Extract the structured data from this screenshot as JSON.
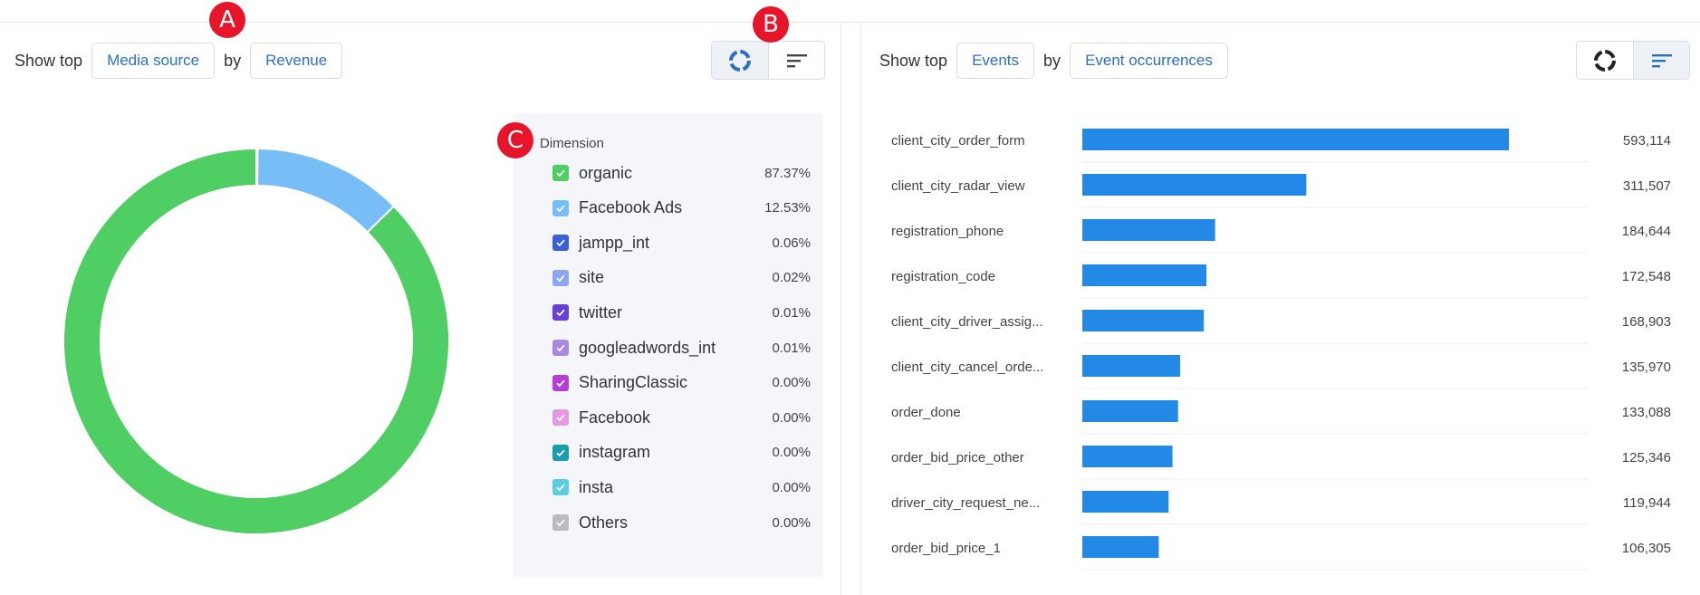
{
  "left_panel": {
    "show_top_label": "Show top",
    "dimension_pill": "Media source",
    "by_label": "by",
    "metric_pill": "Revenue",
    "legend_title": "Dimension",
    "legend": [
      {
        "name": "organic",
        "pct": "87.37%",
        "color": "#4fce64"
      },
      {
        "name": "Facebook Ads",
        "pct": "12.53%",
        "color": "#78bef6"
      },
      {
        "name": "jampp_int",
        "pct": "0.06%",
        "color": "#3b5fd9"
      },
      {
        "name": "site",
        "pct": "0.02%",
        "color": "#8aa6f0"
      },
      {
        "name": "twitter",
        "pct": "0.01%",
        "color": "#6a3fd6"
      },
      {
        "name": "googleadwords_int",
        "pct": "0.01%",
        "color": "#a88ae6"
      },
      {
        "name": "SharingClassic",
        "pct": "0.00%",
        "color": "#b53fd6"
      },
      {
        "name": "Facebook",
        "pct": "0.00%",
        "color": "#e59ae6"
      },
      {
        "name": "instagram",
        "pct": "0.00%",
        "color": "#1a9eac"
      },
      {
        "name": "insta",
        "pct": "0.00%",
        "color": "#5ccde3"
      },
      {
        "name": "Others",
        "pct": "0.00%",
        "color": "#b9bcc0"
      }
    ]
  },
  "right_panel": {
    "show_top_label": "Show top",
    "dimension_pill": "Events",
    "by_label": "by",
    "metric_pill": "Event occurrences"
  },
  "icons": {
    "donut_toggle": "donut-chart-icon",
    "bar_toggle": "bar-sort-icon"
  },
  "markers": {
    "a": "A",
    "b": "B",
    "c": "C"
  },
  "chart_data": [
    {
      "type": "pie",
      "variant": "donut",
      "categories": [
        "organic",
        "Facebook Ads",
        "jampp_int",
        "site",
        "twitter",
        "googleadwords_int",
        "SharingClassic",
        "Facebook",
        "instagram",
        "insta",
        "Others"
      ],
      "values": [
        87.37,
        12.53,
        0.06,
        0.02,
        0.01,
        0.01,
        0.0,
        0.0,
        0.0,
        0.0,
        0.0
      ],
      "colors": [
        "#4fce64",
        "#78bef6",
        "#3b5fd9",
        "#8aa6f0",
        "#6a3fd6",
        "#a88ae6",
        "#b53fd6",
        "#e59ae6",
        "#1a9eac",
        "#5ccde3",
        "#b9bcc0"
      ],
      "legend_position": "right"
    },
    {
      "type": "bar",
      "orientation": "horizontal",
      "categories": [
        "client_city_order_form",
        "client_city_radar_view",
        "registration_phone",
        "registration_code",
        "client_city_driver_assig...",
        "client_city_cancel_orde...",
        "order_done",
        "order_bid_price_other",
        "driver_city_request_ne...",
        "order_bid_price_1"
      ],
      "values": [
        593114,
        311507,
        184644,
        172548,
        168903,
        135970,
        133088,
        125346,
        119944,
        106305
      ],
      "value_labels": [
        "593,114",
        "311,507",
        "184,644",
        "172,548",
        "168,903",
        "135,970",
        "133,088",
        "125,346",
        "119,944",
        "106,305"
      ],
      "color": "#2389e6",
      "grid": false
    }
  ]
}
